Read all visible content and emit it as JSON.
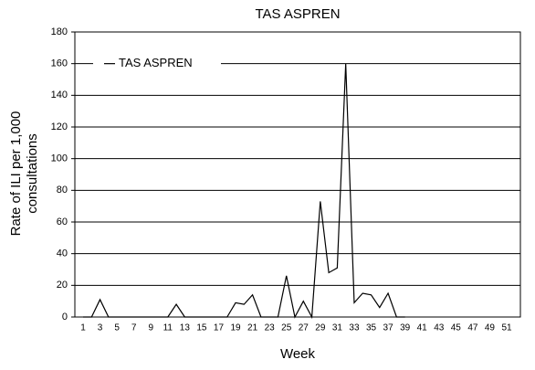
{
  "chart_data": {
    "type": "line",
    "title": "TAS ASPREN",
    "xlabel": "Week",
    "ylabel": [
      "Rate of ILI per 1,000",
      "consultations"
    ],
    "categories": [
      "1",
      null,
      "3",
      null,
      "5",
      null,
      "7",
      null,
      "9",
      null,
      "11",
      null,
      "13",
      null,
      "15",
      null,
      "17",
      null,
      "19",
      null,
      "21",
      null,
      "23",
      null,
      "25",
      null,
      "27",
      null,
      "29",
      null,
      "31",
      null,
      "33",
      null,
      "35",
      null,
      "37",
      null,
      "39",
      null,
      "41",
      null,
      "43",
      null,
      "45",
      null,
      "47",
      null,
      "49",
      null,
      "51",
      null
    ],
    "series": [
      {
        "name": "TAS ASPREN",
        "color": "#000000",
        "values": [
          0,
          0,
          11,
          0,
          0,
          0,
          0,
          0,
          0,
          0,
          0,
          8,
          0,
          0,
          0,
          0,
          0,
          0,
          9,
          8,
          14,
          0,
          0,
          0,
          26,
          0,
          10,
          0,
          73,
          28,
          31,
          160,
          9,
          15,
          14,
          6,
          15,
          0,
          0,
          null,
          null,
          null,
          null,
          null,
          null,
          null,
          null,
          null,
          null,
          null,
          null,
          null
        ]
      }
    ],
    "ylim": [
      0,
      180
    ],
    "yticks": [
      0,
      20,
      40,
      60,
      80,
      100,
      120,
      140,
      160,
      180
    ],
    "grid": true,
    "legend": "upper-left"
  }
}
